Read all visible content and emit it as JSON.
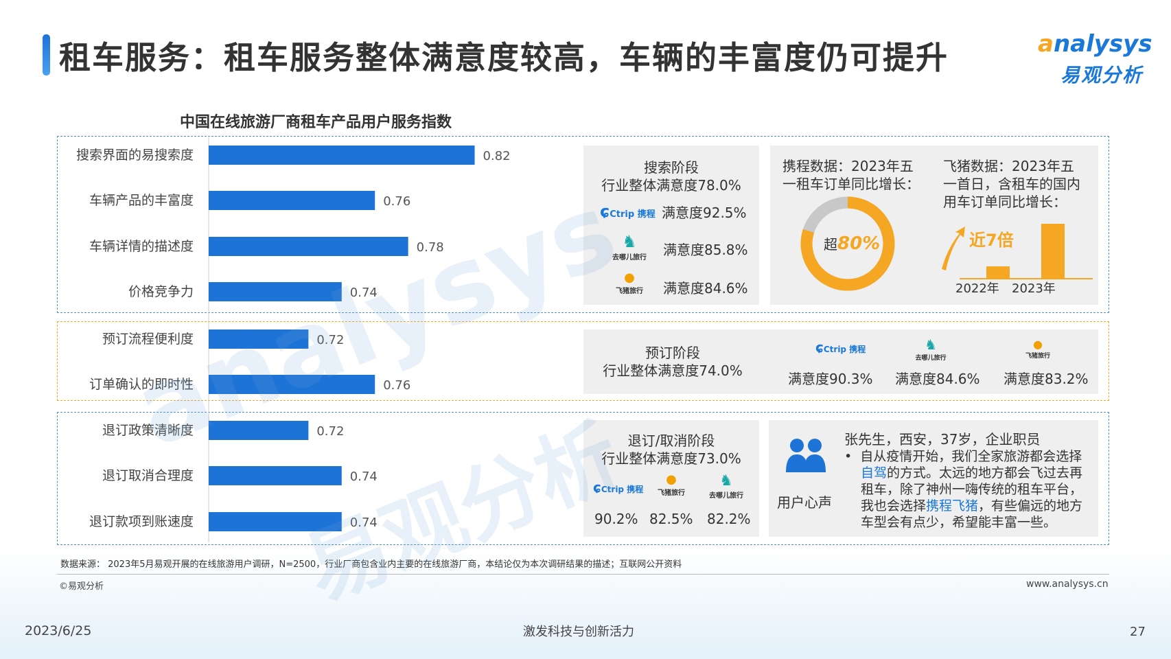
{
  "header": {
    "title": "租车服务：租车服务整体满意度较高，车辆的丰富度仍可提升",
    "logo_en": "analysys",
    "logo_en_a": "a",
    "logo_en_rest": "nalysys",
    "logo_cn": "易观分析"
  },
  "colors": {
    "bar": "#1e73d6",
    "accent_orange": "#f5a623",
    "ring_gray": "#c8c8c8",
    "panel_bg": "#efefef"
  },
  "chart_data": {
    "type": "bar",
    "orientation": "horizontal",
    "title": "中国在线旅游厂商租车产品用户服务指数",
    "categories": [
      "搜索界面的易搜索度",
      "车辆产品的丰富度",
      "车辆详情的描述度",
      "价格竞争力",
      "预订流程便利度",
      "订单确认的即时性",
      "退订政策清晰度",
      "退订取消合理度",
      "退订款项到账速度"
    ],
    "values": [
      0.82,
      0.76,
      0.78,
      0.74,
      0.72,
      0.76,
      0.72,
      0.74,
      0.74
    ],
    "value_labels": [
      "0.82",
      "0.76",
      "0.78",
      "0.74",
      "0.72",
      "0.76",
      "0.72",
      "0.74",
      "0.74"
    ],
    "xlim": [
      0.66,
      0.84
    ]
  },
  "search_stage": {
    "title": "搜索阶段",
    "overall": "行业整体满意度78.0%",
    "rows": [
      {
        "brand": "Ctrip携程",
        "icon": "ctrip-logo-icon",
        "label": "满意度92.5%"
      },
      {
        "brand": "去哪儿旅行",
        "icon": "qunar-camel-icon",
        "label": "满意度85.8%"
      },
      {
        "brand": "飞猪旅行",
        "icon": "fliggy-logo-icon",
        "label": "满意度84.6%"
      }
    ]
  },
  "ctrip_data": {
    "title": "携程数据：2023年五一租车订单同比增长：",
    "title_line1": "携程数据：2023年五",
    "title_line2": "一租车订单同比增长：",
    "ring_label": "超80%",
    "ring_prefix": "超",
    "ring_value": "80%",
    "ring_fraction": 0.8
  },
  "fliggy_data": {
    "title_line1": "飞猪数据：2023年五",
    "title_line2": "一首日，含租车的国内",
    "title_line3": "用车订单同比增长：",
    "growth_label": "近7倍",
    "years": [
      "2022年",
      "2023年"
    ],
    "relative_values": [
      1,
      7
    ]
  },
  "booking_stage": {
    "title": "预订阶段",
    "overall": "行业整体满意度74.0%",
    "items": [
      {
        "brand": "Ctrip携程",
        "icon": "ctrip-logo-icon",
        "label": "满意度90.3%"
      },
      {
        "brand": "去哪儿旅行",
        "icon": "qunar-camel-icon",
        "label": "满意度84.6%"
      },
      {
        "brand": "飞猪旅行",
        "icon": "fliggy-logo-icon",
        "label": "满意度83.2%"
      }
    ]
  },
  "cancel_stage": {
    "title": "退订/取消阶段",
    "overall": "行业整体满意度73.0%",
    "items": [
      {
        "brand": "Ctrip携程",
        "icon": "ctrip-logo-icon",
        "label": "90.2%"
      },
      {
        "brand": "飞猪旅行",
        "icon": "fliggy-logo-icon",
        "label": "82.5%"
      },
      {
        "brand": "去哪儿旅行",
        "icon": "qunar-camel-icon",
        "label": "82.2%"
      }
    ]
  },
  "user_voice": {
    "label": "用户心声",
    "icon": "users-icon",
    "person": "张先生，西安，37岁，企业职员",
    "line1": "自从疫情开始，我们全家旅游都会选择",
    "line2_hl": "自驾",
    "line2_rest": "的方式。太远的地方都会飞过去再",
    "line3": "租车，除了神州一嗨传统的租车平台，",
    "line4_pre": "我也会选择",
    "line4_hl": "携程飞猪",
    "line4_post": "，有些偏远的地方",
    "line5": "车型会有点少，希望能丰富一些。"
  },
  "brand_text": {
    "ctrip_en": "Ctrip",
    "ctrip_cn": "携程",
    "qunar": "去哪儿旅行",
    "fliggy": "飞猪旅行"
  },
  "footer": {
    "source": "数据来源：  2023年5月易观开展的在线旅游用户调研，N=2500，行业厂商包含业内主要的在线旅游厂商，本结论仅为本次调研结果的描述；互联网公开资料",
    "copyright": "©易观分析",
    "url": "www.analysys.cn",
    "date": "2023/6/25",
    "slogan": "激发科技与创新活力",
    "page": "27"
  },
  "watermark": {
    "en": "analysys",
    "cn": "易观分析"
  }
}
